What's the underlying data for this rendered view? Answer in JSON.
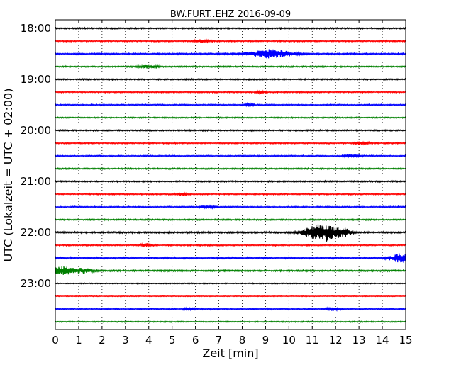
{
  "chart_data": {
    "type": "line",
    "title": "BW.FURT..EHZ 2016-09-09",
    "xlabel": "Zeit  [min]",
    "ylabel": "UTC (Lokalzeit = UTC + 02:00)",
    "xlim": [
      0,
      15
    ],
    "x_ticks": [
      "0",
      "1",
      "2",
      "3",
      "4",
      "5",
      "6",
      "7",
      "8",
      "9",
      "10",
      "11",
      "12",
      "13",
      "14",
      "15"
    ],
    "y_tick_labels": [
      {
        "label": "18:00",
        "trace": 0
      },
      {
        "label": "19:00",
        "trace": 4
      },
      {
        "label": "20:00",
        "trace": 8
      },
      {
        "label": "21:00",
        "trace": 12
      },
      {
        "label": "22:00",
        "trace": 16
      },
      {
        "label": "23:00",
        "trace": 20
      }
    ],
    "grid": "vertical dotted",
    "color_cycle": [
      "#000000",
      "#ff0000",
      "#0000ff",
      "#008000"
    ],
    "series": [
      {
        "start": "18:00",
        "base": 1.0,
        "bursts": []
      },
      {
        "start": "18:15",
        "base": 1.0,
        "bursts": [
          {
            "t": 6.3,
            "amp": 2.0,
            "w": 0.3
          }
        ]
      },
      {
        "start": "18:30",
        "base": 1.2,
        "bursts": [
          {
            "t": 9.2,
            "amp": 5.5,
            "w": 0.9
          }
        ]
      },
      {
        "start": "18:45",
        "base": 1.0,
        "bursts": [
          {
            "t": 4.0,
            "amp": 1.6,
            "w": 0.4
          }
        ]
      },
      {
        "start": "19:00",
        "base": 1.0,
        "bursts": []
      },
      {
        "start": "19:15",
        "base": 1.0,
        "bursts": [
          {
            "t": 8.8,
            "amp": 1.6,
            "w": 0.2
          }
        ]
      },
      {
        "start": "19:30",
        "base": 1.0,
        "bursts": [
          {
            "t": 8.3,
            "amp": 2.0,
            "w": 0.2
          }
        ]
      },
      {
        "start": "19:45",
        "base": 0.9,
        "bursts": []
      },
      {
        "start": "20:00",
        "base": 1.0,
        "bursts": []
      },
      {
        "start": "20:15",
        "base": 1.0,
        "bursts": [
          {
            "t": 13.1,
            "amp": 2.0,
            "w": 0.3
          }
        ]
      },
      {
        "start": "20:30",
        "base": 1.0,
        "bursts": [
          {
            "t": 12.7,
            "amp": 1.8,
            "w": 0.3
          }
        ]
      },
      {
        "start": "20:45",
        "base": 1.0,
        "bursts": []
      },
      {
        "start": "21:00",
        "base": 1.0,
        "bursts": []
      },
      {
        "start": "21:15",
        "base": 1.0,
        "bursts": [
          {
            "t": 5.5,
            "amp": 2.0,
            "w": 0.2
          }
        ]
      },
      {
        "start": "21:30",
        "base": 1.0,
        "bursts": [
          {
            "t": 6.5,
            "amp": 1.8,
            "w": 0.3
          }
        ]
      },
      {
        "start": "21:45",
        "base": 1.0,
        "bursts": []
      },
      {
        "start": "22:00",
        "base": 1.2,
        "bursts": [
          {
            "t": 11.5,
            "amp": 13.0,
            "w": 0.45
          },
          {
            "t": 12.3,
            "amp": 6.0,
            "w": 0.35
          },
          {
            "t": 10.8,
            "amp": 5.0,
            "w": 0.4
          }
        ]
      },
      {
        "start": "22:15",
        "base": 1.0,
        "bursts": [
          {
            "t": 3.9,
            "amp": 2.2,
            "w": 0.2
          }
        ]
      },
      {
        "start": "22:30",
        "base": 1.2,
        "bursts": [
          {
            "t": 14.8,
            "amp": 6.0,
            "w": 0.5
          }
        ]
      },
      {
        "start": "22:45",
        "base": 1.2,
        "bursts": [
          {
            "t": 0.3,
            "amp": 6.0,
            "w": 0.5
          },
          {
            "t": 1.2,
            "amp": 3.0,
            "w": 0.4
          }
        ]
      },
      {
        "start": "23:00",
        "base": 0.7,
        "bursts": []
      },
      {
        "start": "23:15",
        "base": 0.6,
        "bursts": []
      },
      {
        "start": "23:30",
        "base": 1.0,
        "bursts": [
          {
            "t": 5.7,
            "amp": 1.8,
            "w": 0.2
          },
          {
            "t": 11.9,
            "amp": 1.8,
            "w": 0.3
          }
        ]
      },
      {
        "start": "23:45",
        "base": 0.8,
        "bursts": []
      }
    ]
  }
}
